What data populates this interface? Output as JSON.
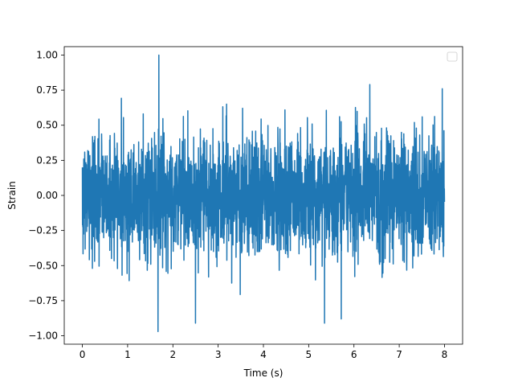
{
  "chart_data": {
    "type": "line",
    "title": "",
    "xlabel": "Time (s)",
    "ylabel": "Strain",
    "xlim": [
      -0.4,
      8.4
    ],
    "ylim": [
      -1.06,
      1.06
    ],
    "x_ticks": [
      0,
      1,
      2,
      3,
      4,
      5,
      6,
      7,
      8
    ],
    "x_tick_labels": [
      "0",
      "1",
      "2",
      "3",
      "4",
      "5",
      "6",
      "7",
      "8"
    ],
    "y_ticks": [
      -1.0,
      -0.75,
      -0.5,
      -0.25,
      0.0,
      0.25,
      0.5,
      0.75,
      1.0
    ],
    "y_tick_labels": [
      "−1.00",
      "−0.75",
      "−0.50",
      "−0.25",
      "0.00",
      "0.25",
      "0.50",
      "0.75",
      "1.00"
    ],
    "grid": false,
    "legend": {
      "placement": "top-right",
      "entries": []
    },
    "series": [
      {
        "color": "#1f77b4",
        "x_start": 0,
        "x_end": 8,
        "notable_points": [
          {
            "x": 1.69,
            "y": 1.0
          },
          {
            "x": 1.67,
            "y": -0.97
          },
          {
            "x": 2.5,
            "y": -0.91
          },
          {
            "x": 5.35,
            "y": -0.91
          },
          {
            "x": 6.35,
            "y": 0.79
          },
          {
            "x": 7.95,
            "y": 0.76
          },
          {
            "x": 5.72,
            "y": -0.88
          }
        ]
      }
    ]
  }
}
